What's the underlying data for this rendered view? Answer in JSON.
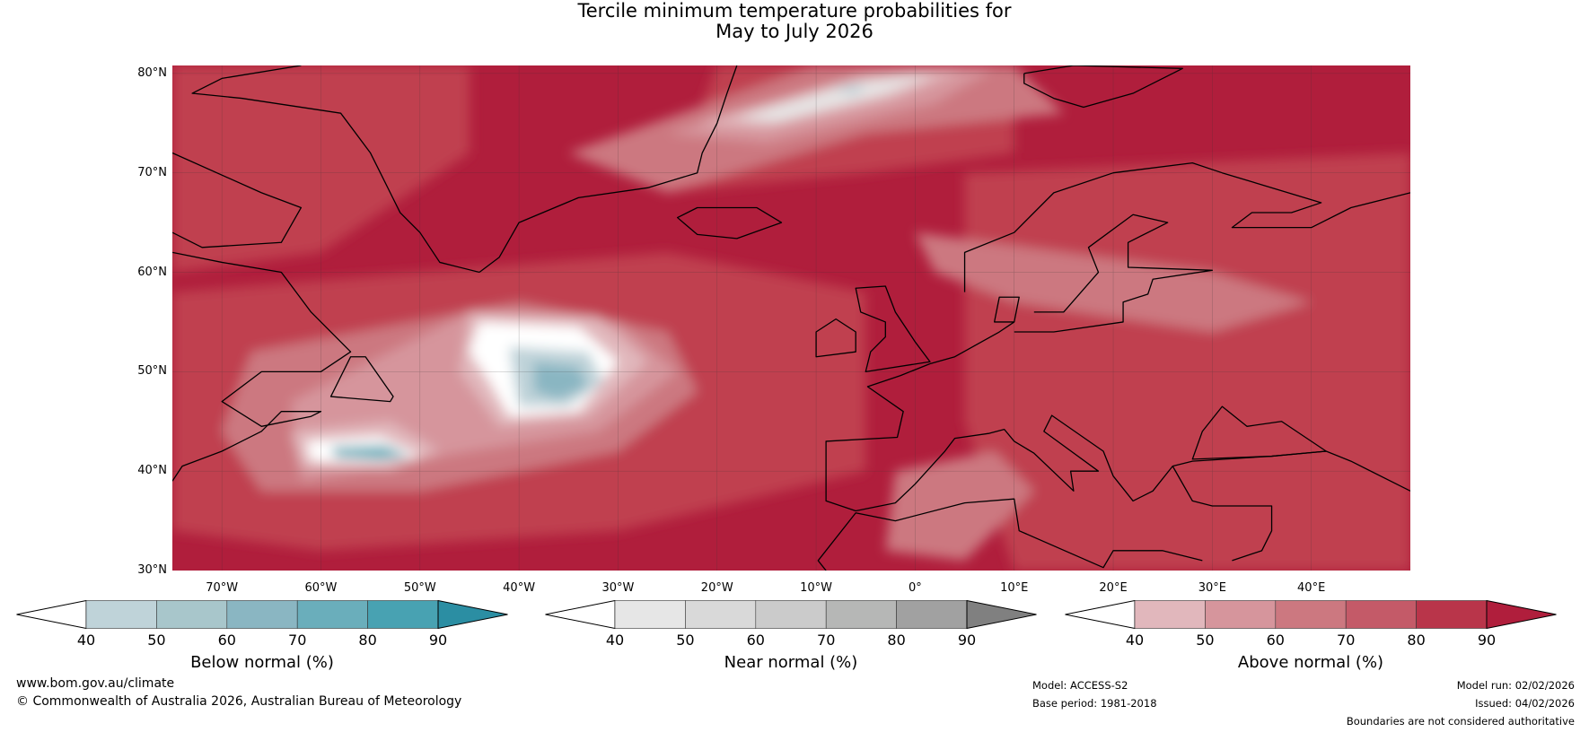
{
  "title_line1": "Tercile minimum temperature probabilities for",
  "title_line2": "May to July 2026",
  "lat_ticks": [
    {
      "value": 80,
      "label": "80°N"
    },
    {
      "value": 70,
      "label": "70°N"
    },
    {
      "value": 60,
      "label": "60°N"
    },
    {
      "value": 50,
      "label": "50°N"
    },
    {
      "value": 40,
      "label": "40°N"
    },
    {
      "value": 30,
      "label": "30°N"
    }
  ],
  "lon_ticks": [
    {
      "value": -70,
      "label": "70°W"
    },
    {
      "value": -60,
      "label": "60°W"
    },
    {
      "value": -50,
      "label": "50°W"
    },
    {
      "value": -40,
      "label": "40°W"
    },
    {
      "value": -30,
      "label": "30°W"
    },
    {
      "value": -20,
      "label": "20°W"
    },
    {
      "value": -10,
      "label": "10°W"
    },
    {
      "value": 0,
      "label": "0°"
    },
    {
      "value": 10,
      "label": "10°E"
    },
    {
      "value": 20,
      "label": "20°E"
    },
    {
      "value": 30,
      "label": "30°E"
    },
    {
      "value": 40,
      "label": "40°E"
    }
  ],
  "colorbars": [
    {
      "title": "Below normal (%)",
      "ticks": [
        "40",
        "50",
        "60",
        "70",
        "80",
        "90"
      ],
      "colors": [
        "#bfd3d9",
        "#a8c6cb",
        "#8ab6c2",
        "#6aaebb",
        "#48a2b2"
      ],
      "extend_color": "#2b8ea3"
    },
    {
      "title": "Near normal (%)",
      "ticks": [
        "40",
        "50",
        "60",
        "70",
        "80",
        "90"
      ],
      "colors": [
        "#e6e6e6",
        "#d9d9d9",
        "#cbcbcb",
        "#b6b7b6",
        "#a1a1a1"
      ],
      "extend_color": "#808080"
    },
    {
      "title": "Above normal (%)",
      "ticks": [
        "40",
        "50",
        "60",
        "70",
        "80",
        "90"
      ],
      "colors": [
        "#e1b7bc",
        "#d6959c",
        "#cc7880",
        "#c45a68",
        "#b9354a"
      ],
      "extend_color": "#b01e3c"
    }
  ],
  "footer": {
    "website": "www.bom.gov.au/climate",
    "copyright": "© Commonwealth of Australia 2026, Australian Bureau of Meteorology",
    "model": "Model: ACCESS-S2",
    "base_period": "Base period: 1981-2018",
    "model_run": "Model run: 02/02/2026",
    "issued": "Issued: 04/02/2026",
    "disclaimer": "Boundaries are not considered authoritative"
  }
}
